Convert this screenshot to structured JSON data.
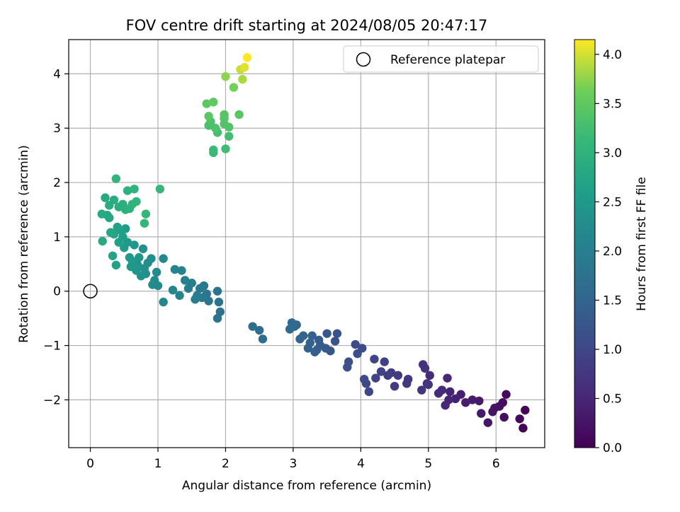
{
  "chart_data": {
    "type": "scatter",
    "title": "FOV centre drift starting at 2024/08/05 20:47:17",
    "xlabel": "Angular distance from reference (arcmin)",
    "ylabel": "Rotation from reference (arcmin)",
    "xlim": [
      -0.32,
      6.72
    ],
    "ylim": [
      -2.88,
      4.63
    ],
    "xticks": [
      0,
      1,
      2,
      3,
      4,
      5,
      6
    ],
    "yticks": [
      -2,
      -1,
      0,
      1,
      2,
      3,
      4
    ],
    "grid": true,
    "colormap": "viridis",
    "colorbar": {
      "label": "Hours from first FF file",
      "range": [
        0.0,
        4.15
      ],
      "ticks": [
        "0.0",
        "0.5",
        "1.0",
        "1.5",
        "2.0",
        "2.5",
        "3.0",
        "3.5",
        "4.0"
      ]
    },
    "legend": {
      "position": "top-right",
      "entries": [
        {
          "label": "Reference platepar",
          "marker": "open-circle",
          "color": "#000000"
        }
      ]
    },
    "reference_point": {
      "x": 0,
      "y": 0
    },
    "points": [
      {
        "x": 6.4,
        "y": -2.52,
        "c": 0.05
      },
      {
        "x": 6.43,
        "y": -2.19,
        "c": 0.07
      },
      {
        "x": 6.35,
        "y": -2.35,
        "c": 0.1
      },
      {
        "x": 6.15,
        "y": -1.9,
        "c": 0.12
      },
      {
        "x": 6.1,
        "y": -2.05,
        "c": 0.15
      },
      {
        "x": 6.12,
        "y": -2.32,
        "c": 0.17
      },
      {
        "x": 6.05,
        "y": -2.12,
        "c": 0.2
      },
      {
        "x": 5.98,
        "y": -2.15,
        "c": 0.22
      },
      {
        "x": 5.95,
        "y": -2.22,
        "c": 0.25
      },
      {
        "x": 5.88,
        "y": -2.42,
        "c": 0.27
      },
      {
        "x": 5.78,
        "y": -2.25,
        "c": 0.3
      },
      {
        "x": 5.75,
        "y": -2.02,
        "c": 0.32
      },
      {
        "x": 5.65,
        "y": -2.0,
        "c": 0.35
      },
      {
        "x": 5.55,
        "y": -2.05,
        "c": 0.38
      },
      {
        "x": 5.48,
        "y": -1.9,
        "c": 0.4
      },
      {
        "x": 5.4,
        "y": -1.98,
        "c": 0.42
      },
      {
        "x": 5.32,
        "y": -1.85,
        "c": 0.45
      },
      {
        "x": 5.3,
        "y": -2.0,
        "c": 0.47
      },
      {
        "x": 5.28,
        "y": -1.6,
        "c": 0.5
      },
      {
        "x": 5.25,
        "y": -2.1,
        "c": 0.52
      },
      {
        "x": 5.2,
        "y": -1.82,
        "c": 0.55
      },
      {
        "x": 5.15,
        "y": -1.88,
        "c": 0.57
      },
      {
        "x": 5.02,
        "y": -1.55,
        "c": 0.6
      },
      {
        "x": 4.98,
        "y": -1.7,
        "c": 0.62
      },
      {
        "x": 4.95,
        "y": -1.42,
        "c": 0.65
      },
      {
        "x": 4.92,
        "y": -1.35,
        "c": 0.67
      },
      {
        "x": 4.9,
        "y": -1.82,
        "c": 0.7
      },
      {
        "x": 5.0,
        "y": -1.72,
        "c": 0.72
      },
      {
        "x": 4.7,
        "y": -1.62,
        "c": 0.75
      },
      {
        "x": 4.68,
        "y": -1.7,
        "c": 0.77
      },
      {
        "x": 4.55,
        "y": -1.55,
        "c": 0.8
      },
      {
        "x": 4.5,
        "y": -1.75,
        "c": 0.82
      },
      {
        "x": 4.45,
        "y": -1.5,
        "c": 0.85
      },
      {
        "x": 4.4,
        "y": -1.55,
        "c": 0.87
      },
      {
        "x": 4.35,
        "y": -1.3,
        "c": 0.9
      },
      {
        "x": 4.3,
        "y": -1.48,
        "c": 0.92
      },
      {
        "x": 4.22,
        "y": -1.6,
        "c": 0.95
      },
      {
        "x": 4.2,
        "y": -1.25,
        "c": 0.97
      },
      {
        "x": 4.12,
        "y": -1.85,
        "c": 1.0
      },
      {
        "x": 4.08,
        "y": -1.7,
        "c": 1.02
      },
      {
        "x": 4.05,
        "y": -1.62,
        "c": 1.05
      },
      {
        "x": 4.02,
        "y": -1.05,
        "c": 1.07
      },
      {
        "x": 3.95,
        "y": -1.15,
        "c": 1.1
      },
      {
        "x": 3.92,
        "y": -0.98,
        "c": 1.12
      },
      {
        "x": 3.82,
        "y": -1.3,
        "c": 1.15
      },
      {
        "x": 3.8,
        "y": -1.4,
        "c": 1.17
      },
      {
        "x": 3.65,
        "y": -0.78,
        "c": 1.2
      },
      {
        "x": 3.62,
        "y": -0.92,
        "c": 1.22
      },
      {
        "x": 3.55,
        "y": -1.1,
        "c": 1.25
      },
      {
        "x": 3.5,
        "y": -0.78,
        "c": 1.27
      },
      {
        "x": 3.48,
        "y": -1.05,
        "c": 1.3
      },
      {
        "x": 3.4,
        "y": -1.0,
        "c": 1.32
      },
      {
        "x": 3.38,
        "y": -0.9,
        "c": 1.35
      },
      {
        "x": 3.35,
        "y": -1.08,
        "c": 1.37
      },
      {
        "x": 3.32,
        "y": -1.12,
        "c": 1.4
      },
      {
        "x": 3.28,
        "y": -0.82,
        "c": 1.42
      },
      {
        "x": 3.25,
        "y": -0.95,
        "c": 1.45
      },
      {
        "x": 3.22,
        "y": -1.05,
        "c": 1.47
      },
      {
        "x": 3.15,
        "y": -0.82,
        "c": 1.5
      },
      {
        "x": 3.1,
        "y": -0.88,
        "c": 1.52
      },
      {
        "x": 3.05,
        "y": -0.62,
        "c": 1.55
      },
      {
        "x": 3.02,
        "y": -0.65,
        "c": 1.57
      },
      {
        "x": 2.98,
        "y": -0.58,
        "c": 1.6
      },
      {
        "x": 2.95,
        "y": -0.7,
        "c": 1.62
      },
      {
        "x": 2.55,
        "y": -0.88,
        "c": 1.65
      },
      {
        "x": 2.5,
        "y": -0.72,
        "c": 1.67
      },
      {
        "x": 2.4,
        "y": -0.65,
        "c": 1.7
      },
      {
        "x": 1.92,
        "y": -0.38,
        "c": 1.72
      },
      {
        "x": 1.88,
        "y": -0.5,
        "c": 1.75
      },
      {
        "x": 1.9,
        "y": -0.2,
        "c": 1.77
      },
      {
        "x": 1.88,
        "y": 0.0,
        "c": 1.8
      },
      {
        "x": 1.75,
        "y": -0.18,
        "c": 1.82
      },
      {
        "x": 1.72,
        "y": -0.05,
        "c": 1.85
      },
      {
        "x": 1.68,
        "y": 0.1,
        "c": 1.87
      },
      {
        "x": 1.65,
        "y": -0.12,
        "c": 1.9
      },
      {
        "x": 1.62,
        "y": 0.05,
        "c": 1.92
      },
      {
        "x": 1.58,
        "y": -0.08,
        "c": 1.95
      },
      {
        "x": 1.55,
        "y": -0.15,
        "c": 1.97
      },
      {
        "x": 1.5,
        "y": 0.15,
        "c": 2.0
      },
      {
        "x": 1.45,
        "y": 0.05,
        "c": 2.02
      },
      {
        "x": 1.4,
        "y": 0.2,
        "c": 2.05
      },
      {
        "x": 1.35,
        "y": 0.38,
        "c": 2.07
      },
      {
        "x": 1.32,
        "y": -0.08,
        "c": 2.1
      },
      {
        "x": 1.25,
        "y": 0.4,
        "c": 2.12
      },
      {
        "x": 1.22,
        "y": 0.02,
        "c": 2.14
      },
      {
        "x": 1.08,
        "y": -0.2,
        "c": 2.16
      },
      {
        "x": 1.08,
        "y": 0.6,
        "c": 2.18
      },
      {
        "x": 1.0,
        "y": 0.1,
        "c": 2.2
      },
      {
        "x": 0.98,
        "y": 0.35,
        "c": 2.22
      },
      {
        "x": 0.95,
        "y": 0.2,
        "c": 2.24
      },
      {
        "x": 0.92,
        "y": 0.12,
        "c": 2.26
      },
      {
        "x": 0.9,
        "y": 0.6,
        "c": 2.28
      },
      {
        "x": 0.85,
        "y": 0.52,
        "c": 2.3
      },
      {
        "x": 0.82,
        "y": 0.32,
        "c": 2.32
      },
      {
        "x": 0.8,
        "y": 0.42,
        "c": 2.34
      },
      {
        "x": 0.78,
        "y": 0.78,
        "c": 2.36
      },
      {
        "x": 0.75,
        "y": 0.28,
        "c": 2.38
      },
      {
        "x": 0.72,
        "y": 0.62,
        "c": 2.4
      },
      {
        "x": 0.7,
        "y": 0.48,
        "c": 2.42
      },
      {
        "x": 0.68,
        "y": 0.38,
        "c": 2.44
      },
      {
        "x": 0.65,
        "y": 0.85,
        "c": 2.46
      },
      {
        "x": 0.62,
        "y": 0.55,
        "c": 2.48
      },
      {
        "x": 0.6,
        "y": 0.45,
        "c": 2.5
      },
      {
        "x": 0.58,
        "y": 0.62,
        "c": 2.52
      },
      {
        "x": 0.55,
        "y": 0.9,
        "c": 2.54
      },
      {
        "x": 0.52,
        "y": 1.15,
        "c": 2.56
      },
      {
        "x": 0.5,
        "y": 0.8,
        "c": 2.58
      },
      {
        "x": 0.48,
        "y": 1.0,
        "c": 2.6
      },
      {
        "x": 0.45,
        "y": 1.12,
        "c": 2.62
      },
      {
        "x": 0.42,
        "y": 0.9,
        "c": 2.64
      },
      {
        "x": 0.4,
        "y": 1.18,
        "c": 2.66
      },
      {
        "x": 0.38,
        "y": 0.48,
        "c": 2.68
      },
      {
        "x": 0.35,
        "y": 1.05,
        "c": 2.7
      },
      {
        "x": 0.33,
        "y": 0.65,
        "c": 2.72
      },
      {
        "x": 0.3,
        "y": 1.08,
        "c": 2.74
      },
      {
        "x": 0.28,
        "y": 1.35,
        "c": 2.76
      },
      {
        "x": 0.25,
        "y": 1.4,
        "c": 2.78
      },
      {
        "x": 0.22,
        "y": 1.72,
        "c": 2.8
      },
      {
        "x": 0.18,
        "y": 0.92,
        "c": 2.82
      },
      {
        "x": 0.17,
        "y": 1.42,
        "c": 2.84
      },
      {
        "x": 0.28,
        "y": 1.58,
        "c": 2.86
      },
      {
        "x": 0.35,
        "y": 1.68,
        "c": 2.88
      },
      {
        "x": 0.42,
        "y": 1.55,
        "c": 2.9
      },
      {
        "x": 0.48,
        "y": 1.6,
        "c": 2.92
      },
      {
        "x": 0.52,
        "y": 1.5,
        "c": 2.94
      },
      {
        "x": 0.55,
        "y": 1.85,
        "c": 2.96
      },
      {
        "x": 0.58,
        "y": 1.52,
        "c": 2.98
      },
      {
        "x": 0.62,
        "y": 1.6,
        "c": 3.0
      },
      {
        "x": 0.65,
        "y": 1.88,
        "c": 3.02
      },
      {
        "x": 0.68,
        "y": 1.65,
        "c": 3.04
      },
      {
        "x": 0.38,
        "y": 2.07,
        "c": 3.06
      },
      {
        "x": 0.8,
        "y": 1.25,
        "c": 3.08
      },
      {
        "x": 0.82,
        "y": 1.42,
        "c": 3.1
      },
      {
        "x": 1.03,
        "y": 1.88,
        "c": 3.12
      },
      {
        "x": 1.82,
        "y": 2.55,
        "c": 3.15
      },
      {
        "x": 1.82,
        "y": 2.6,
        "c": 3.18
      },
      {
        "x": 2.0,
        "y": 2.62,
        "c": 3.2
      },
      {
        "x": 2.05,
        "y": 2.85,
        "c": 3.25
      },
      {
        "x": 1.88,
        "y": 2.92,
        "c": 3.28
      },
      {
        "x": 1.75,
        "y": 3.05,
        "c": 3.3
      },
      {
        "x": 1.78,
        "y": 3.12,
        "c": 3.32
      },
      {
        "x": 1.85,
        "y": 3.0,
        "c": 3.34
      },
      {
        "x": 1.98,
        "y": 3.08,
        "c": 3.36
      },
      {
        "x": 2.05,
        "y": 3.02,
        "c": 3.38
      },
      {
        "x": 1.98,
        "y": 3.18,
        "c": 3.4
      },
      {
        "x": 1.98,
        "y": 3.25,
        "c": 3.42
      },
      {
        "x": 2.2,
        "y": 3.25,
        "c": 3.44
      },
      {
        "x": 1.75,
        "y": 3.22,
        "c": 3.46
      },
      {
        "x": 1.72,
        "y": 3.45,
        "c": 3.48
      },
      {
        "x": 1.82,
        "y": 3.48,
        "c": 3.5
      },
      {
        "x": 2.12,
        "y": 3.75,
        "c": 3.65
      },
      {
        "x": 2.0,
        "y": 3.95,
        "c": 3.75
      },
      {
        "x": 2.25,
        "y": 3.9,
        "c": 3.85
      },
      {
        "x": 2.22,
        "y": 4.08,
        "c": 3.95
      },
      {
        "x": 2.28,
        "y": 4.12,
        "c": 4.05
      },
      {
        "x": 2.32,
        "y": 4.3,
        "c": 4.15
      }
    ]
  }
}
